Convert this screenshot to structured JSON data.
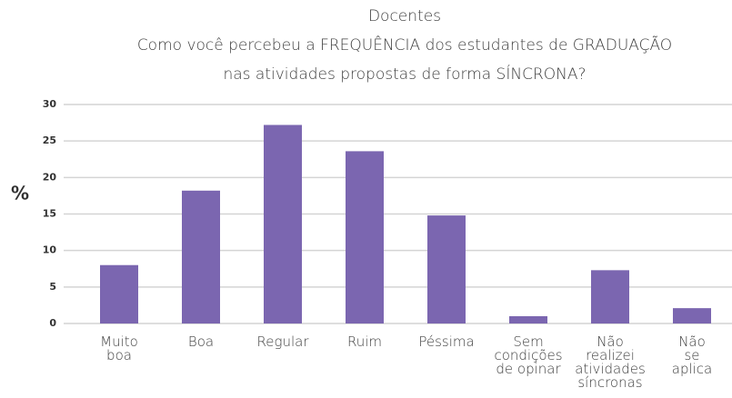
{
  "chart_data": {
    "type": "bar",
    "title": [
      "Docentes",
      "Como você percebeu a FREQUÊNCIA dos estudantes de GRADUAÇÃO",
      "nas atividades propostas de forma SÍNCRONA?"
    ],
    "y_label": "%",
    "categories": [
      "Muito\nboa",
      "Boa",
      "Regular",
      "Ruim",
      "Péssima",
      "Sem\ncondições\nde opinar",
      "Não\nrealizei\natividades\nsíncronas",
      "Não\nse\naplica"
    ],
    "values": [
      8,
      18.2,
      27.2,
      23.6,
      14.8,
      1,
      7.3,
      2.1
    ],
    "color": "#7b66b0",
    "ylim": [
      0,
      30
    ],
    "yticks": [
      0,
      5,
      10,
      15,
      20,
      25,
      30
    ],
    "grid": true
  }
}
